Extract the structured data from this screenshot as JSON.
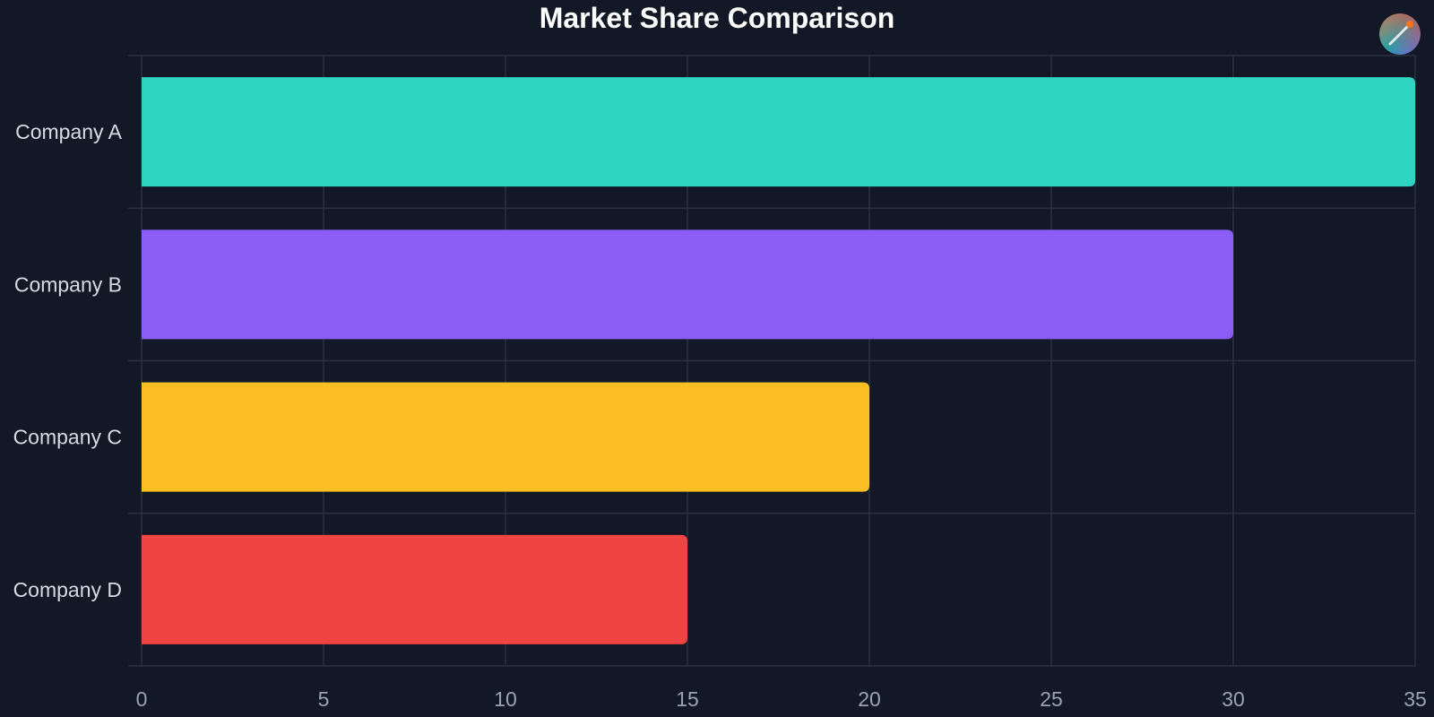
{
  "chart_data": {
    "type": "bar",
    "orientation": "horizontal",
    "title": "Market Share Comparison",
    "xlabel": "",
    "ylabel": "",
    "categories": [
      "Company A",
      "Company B",
      "Company C",
      "Company D"
    ],
    "values": [
      35,
      30,
      20,
      15
    ],
    "colors": [
      "#2dd4bf",
      "#8b5cf6",
      "#fbbf24",
      "#ef4444"
    ],
    "xlim": [
      0,
      35
    ],
    "x_ticks": [
      0,
      5,
      10,
      15,
      20,
      25,
      30,
      35
    ],
    "grid": true,
    "legend": "none"
  },
  "theme": {
    "background": "#121826",
    "grid_color": "#2a3140"
  },
  "logo": {
    "icon": "paint-brush-icon"
  }
}
